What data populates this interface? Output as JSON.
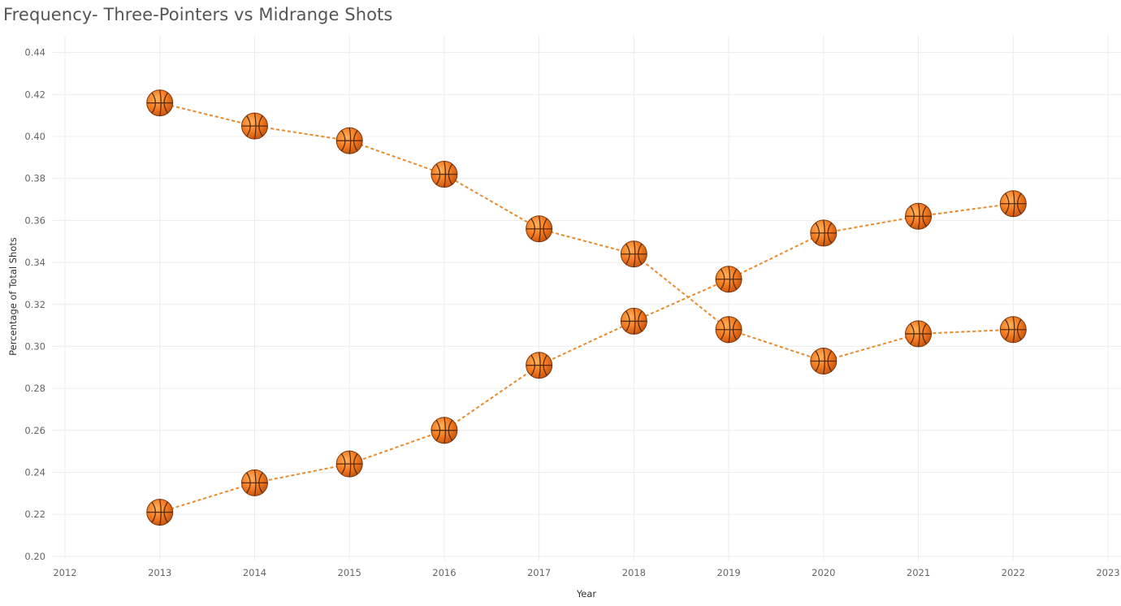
{
  "chart_data": {
    "type": "line",
    "title": "Frequency- Three-Pointers vs Midrange Shots",
    "xlabel": "Year",
    "ylabel": "Percentage of Total Shots",
    "xlim": [
      2012,
      2023
    ],
    "ylim": [
      0.198,
      0.448
    ],
    "x_ticks": [
      "2012",
      "2013",
      "2014",
      "2015",
      "2016",
      "2017",
      "2018",
      "2019",
      "2020",
      "2021",
      "2022",
      "2023"
    ],
    "y_ticks": [
      "0.20",
      "0.22",
      "0.24",
      "0.26",
      "0.28",
      "0.30",
      "0.32",
      "0.34",
      "0.36",
      "0.38",
      "0.40",
      "0.42",
      "0.44"
    ],
    "grid": true,
    "line_style": "dashed",
    "marker": "basketball-icon",
    "colors": {
      "line": "#ea8a2a",
      "ball": "#f47a20",
      "ball_seam": "#5a2d10",
      "grid": "#ececec"
    },
    "x": [
      2013,
      2014,
      2015,
      2016,
      2017,
      2018,
      2019,
      2020,
      2021,
      2022
    ],
    "series": [
      {
        "values": [
          0.416,
          0.405,
          0.398,
          0.382,
          0.356,
          0.344,
          0.308,
          0.293,
          0.306,
          0.308
        ]
      },
      {
        "values": [
          0.221,
          0.235,
          0.244,
          0.26,
          0.291,
          0.312,
          0.332,
          0.354,
          0.362,
          0.368
        ]
      }
    ]
  }
}
